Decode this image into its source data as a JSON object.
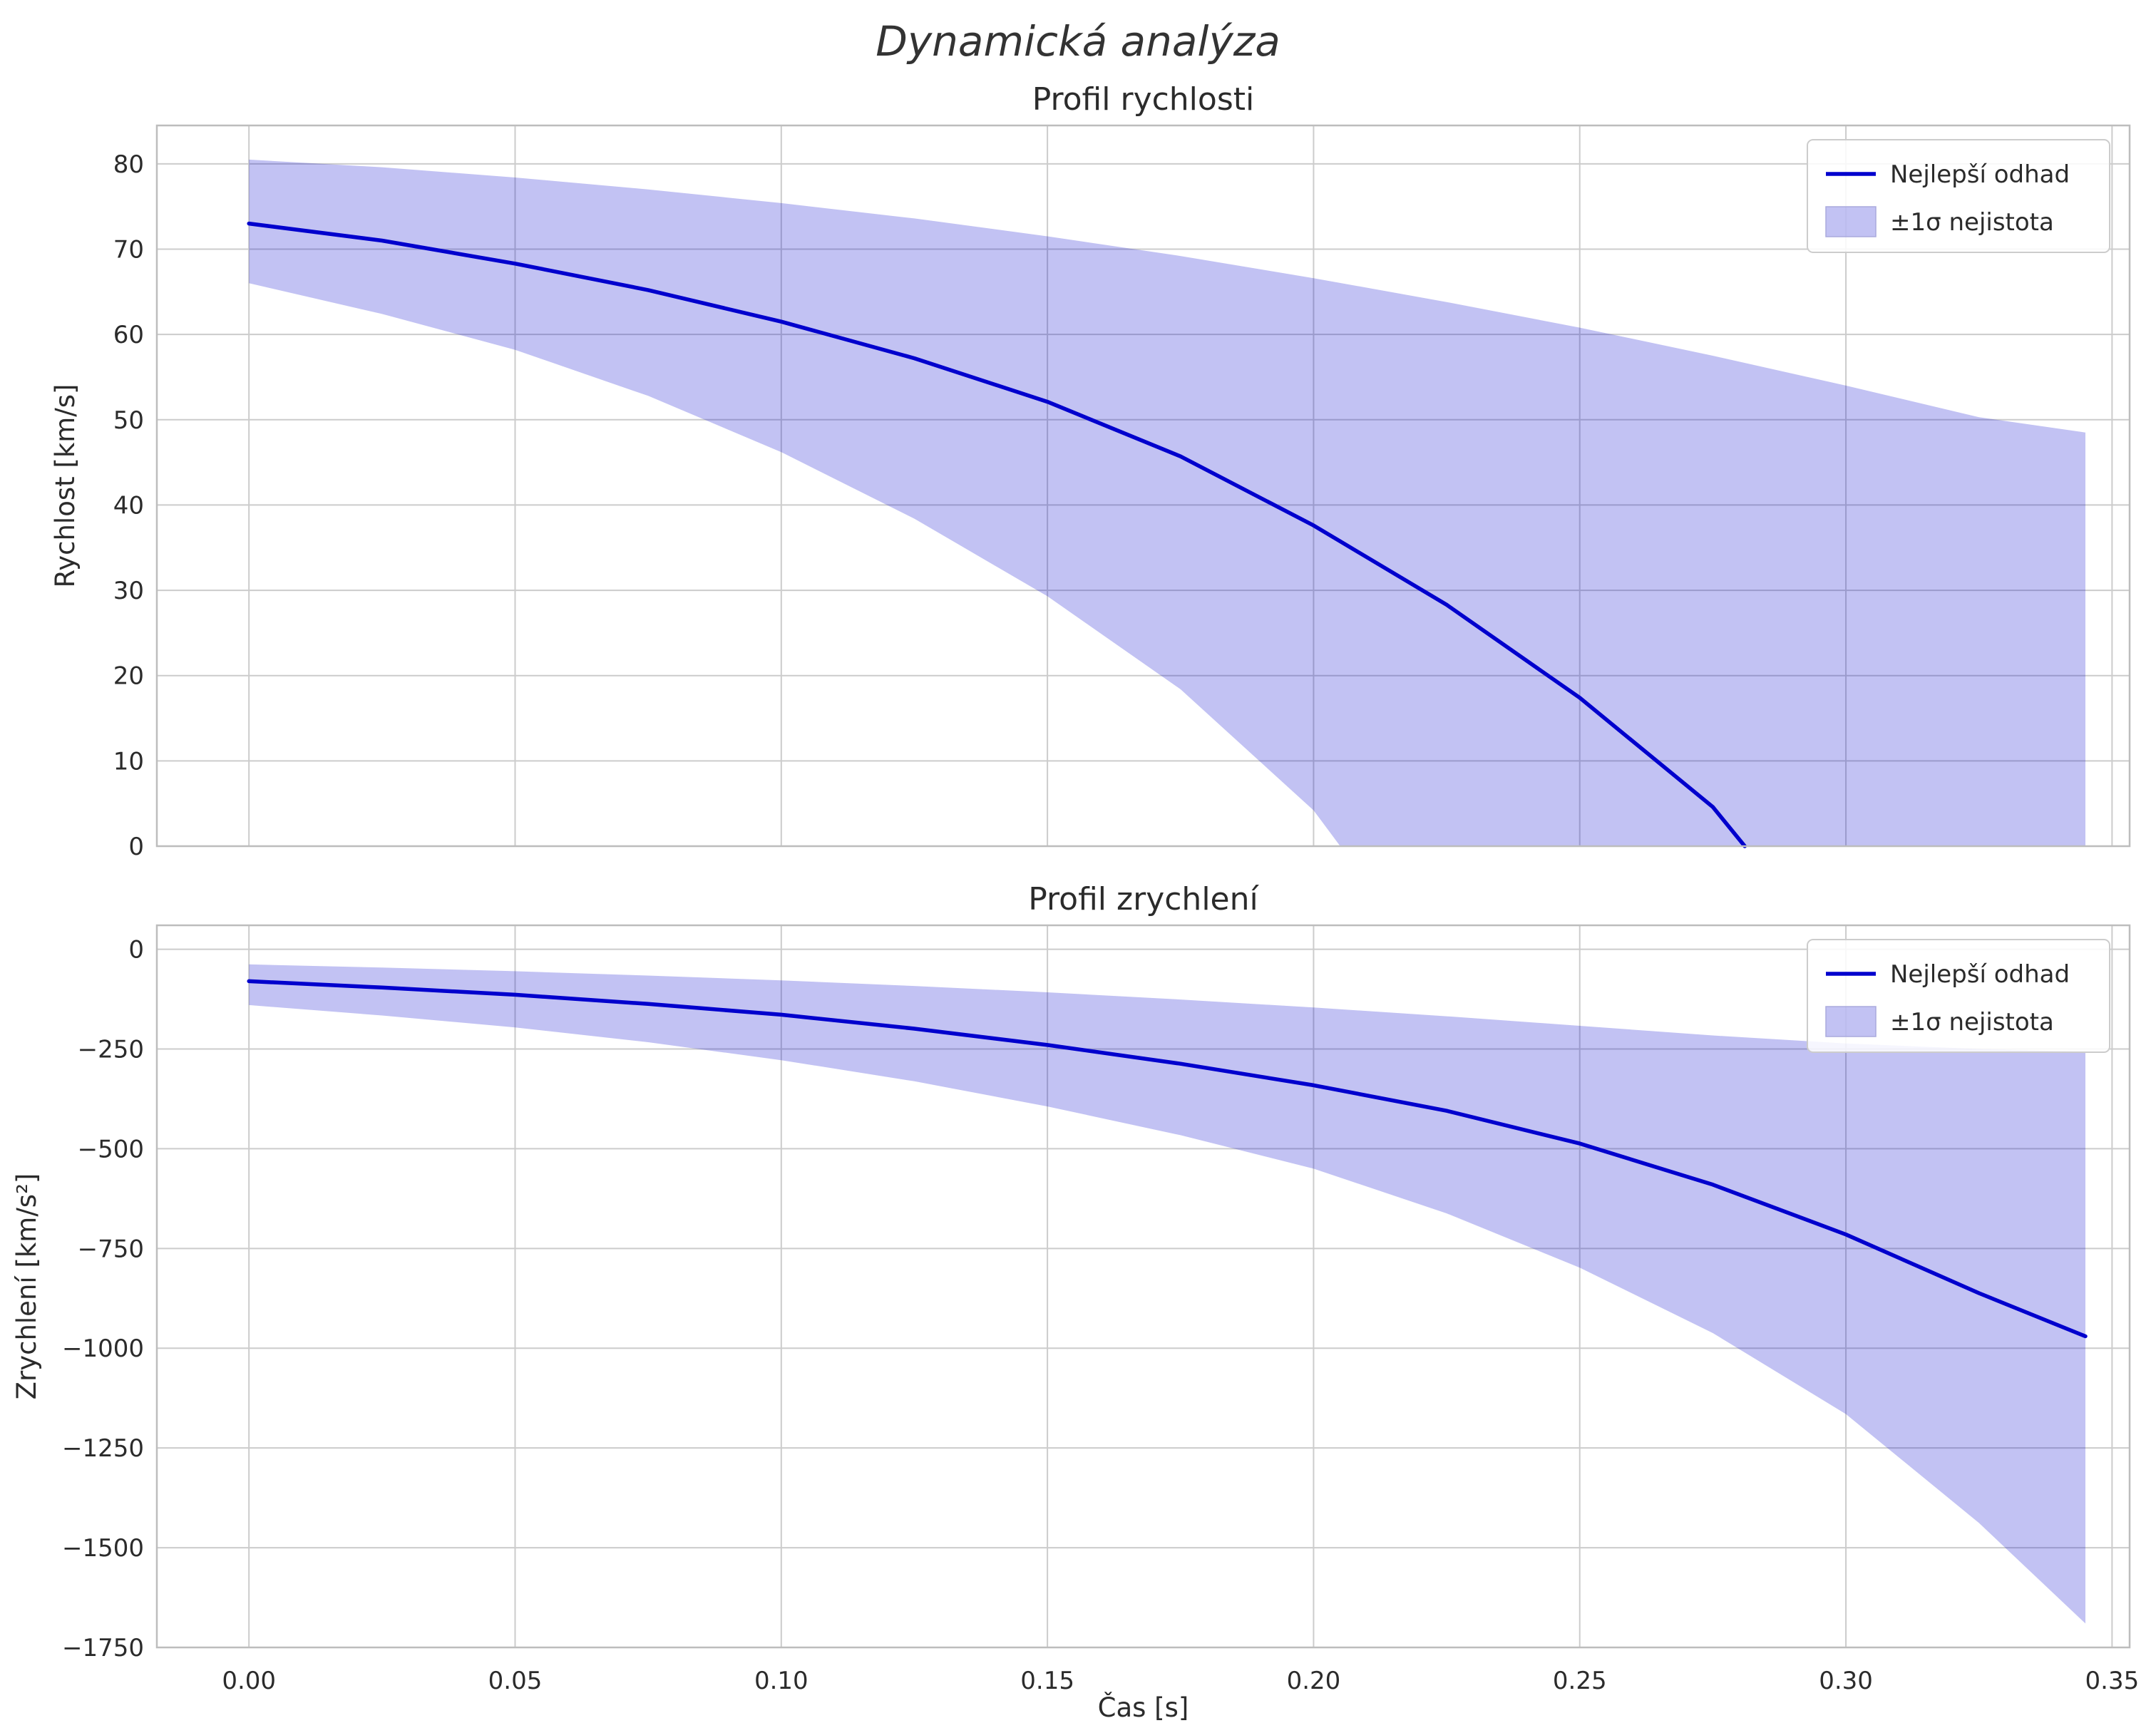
{
  "figure": {
    "title": "Dynamická analýza"
  },
  "colors": {
    "line": "#0000cd",
    "band_opacity": 0.24,
    "grid": "#cccccc",
    "spine": "#bdbdbd",
    "text": "#2b2b2b",
    "legend_border": "#cccccc"
  },
  "x_axis": {
    "label": "Čas [s]",
    "lim": [
      -0.0173,
      0.3533
    ],
    "ticks": [
      0,
      0.05,
      0.1,
      0.15,
      0.2,
      0.25,
      0.3,
      0.35
    ],
    "tick_labels": [
      "0.00",
      "0.05",
      "0.10",
      "0.15",
      "0.20",
      "0.25",
      "0.30",
      "0.35"
    ]
  },
  "chart_data": [
    {
      "type": "line",
      "title": "Profil rychlosti",
      "ylabel": "Rychlost [km/s]",
      "ylim": [
        0,
        84.5
      ],
      "yticks": [
        0,
        10,
        20,
        30,
        40,
        50,
        60,
        70,
        80
      ],
      "ytick_labels": [
        "0",
        "10",
        "20",
        "30",
        "40",
        "50",
        "60",
        "70",
        "80"
      ],
      "legend": [
        {
          "label": "Nejlepší odhad",
          "swatch": "line"
        },
        {
          "label": "±1σ nejistota",
          "swatch": "band"
        }
      ],
      "series": [
        {
          "name": "best_estimate",
          "role": "line",
          "x": [
            0,
            0.025,
            0.05,
            0.075,
            0.1,
            0.125,
            0.15,
            0.175,
            0.2,
            0.225,
            0.25,
            0.275,
            0.281
          ],
          "y": [
            73,
            71.0,
            68.3,
            65.2,
            61.5,
            57.2,
            52.1,
            45.7,
            37.6,
            28.3,
            17.4,
            4.6,
            0
          ]
        },
        {
          "name": "upper_bound",
          "role": "band-upper",
          "x": [
            0,
            0.025,
            0.05,
            0.075,
            0.1,
            0.125,
            0.15,
            0.175,
            0.2,
            0.225,
            0.25,
            0.275,
            0.3,
            0.325,
            0.345
          ],
          "y": [
            80.5,
            79.6,
            78.4,
            77.0,
            75.4,
            73.6,
            71.5,
            69.2,
            66.6,
            63.8,
            60.8,
            57.5,
            54.0,
            50.3,
            48.5
          ]
        },
        {
          "name": "lower_bound",
          "role": "band-lower",
          "x": [
            0,
            0.025,
            0.05,
            0.075,
            0.1,
            0.125,
            0.15,
            0.175,
            0.2,
            0.205,
            0.345
          ],
          "y": [
            66,
            62.4,
            58.2,
            52.8,
            46.2,
            38.4,
            29.3,
            18.4,
            4.2,
            0,
            0
          ]
        }
      ]
    },
    {
      "type": "line",
      "title": "Profil zrychlení",
      "ylabel": "Zrychlení [km/s²]",
      "ylim": [
        -1750,
        60
      ],
      "yticks": [
        -1750,
        -1500,
        -1250,
        -1000,
        -750,
        -500,
        -250,
        0
      ],
      "ytick_labels": [
        "−1750",
        "−1500",
        "−1250",
        "−1000",
        "−750",
        "−500",
        "−250",
        "0"
      ],
      "legend": [
        {
          "label": "Nejlepší odhad",
          "swatch": "line"
        },
        {
          "label": "±1σ nejistota",
          "swatch": "band"
        }
      ],
      "series": [
        {
          "name": "best_estimate",
          "role": "line",
          "x": [
            0,
            0.025,
            0.05,
            0.075,
            0.1,
            0.125,
            0.15,
            0.175,
            0.2,
            0.225,
            0.25,
            0.275,
            0.3,
            0.325,
            0.345
          ],
          "y": [
            -80,
            -96,
            -114,
            -137,
            -164,
            -199,
            -240,
            -287,
            -341,
            -405,
            -487,
            -590,
            -715,
            -862,
            -970
          ]
        },
        {
          "name": "upper_bound",
          "role": "band-upper",
          "x": [
            0,
            0.025,
            0.05,
            0.075,
            0.1,
            0.125,
            0.15,
            0.175,
            0.2,
            0.225,
            0.25,
            0.275,
            0.3,
            0.325,
            0.345
          ],
          "y": [
            -38,
            -46,
            -55,
            -66,
            -78,
            -92,
            -108,
            -126,
            -146,
            -168,
            -192,
            -216,
            -236,
            -250,
            -257
          ]
        },
        {
          "name": "lower_bound",
          "role": "band-lower",
          "x": [
            0,
            0.025,
            0.05,
            0.075,
            0.1,
            0.125,
            0.15,
            0.175,
            0.2,
            0.225,
            0.25,
            0.275,
            0.3,
            0.325,
            0.345
          ],
          "y": [
            -140,
            -166,
            -196,
            -233,
            -278,
            -331,
            -394,
            -466,
            -550,
            -662,
            -798,
            -962,
            -1165,
            -1438,
            -1690
          ]
        }
      ]
    }
  ]
}
